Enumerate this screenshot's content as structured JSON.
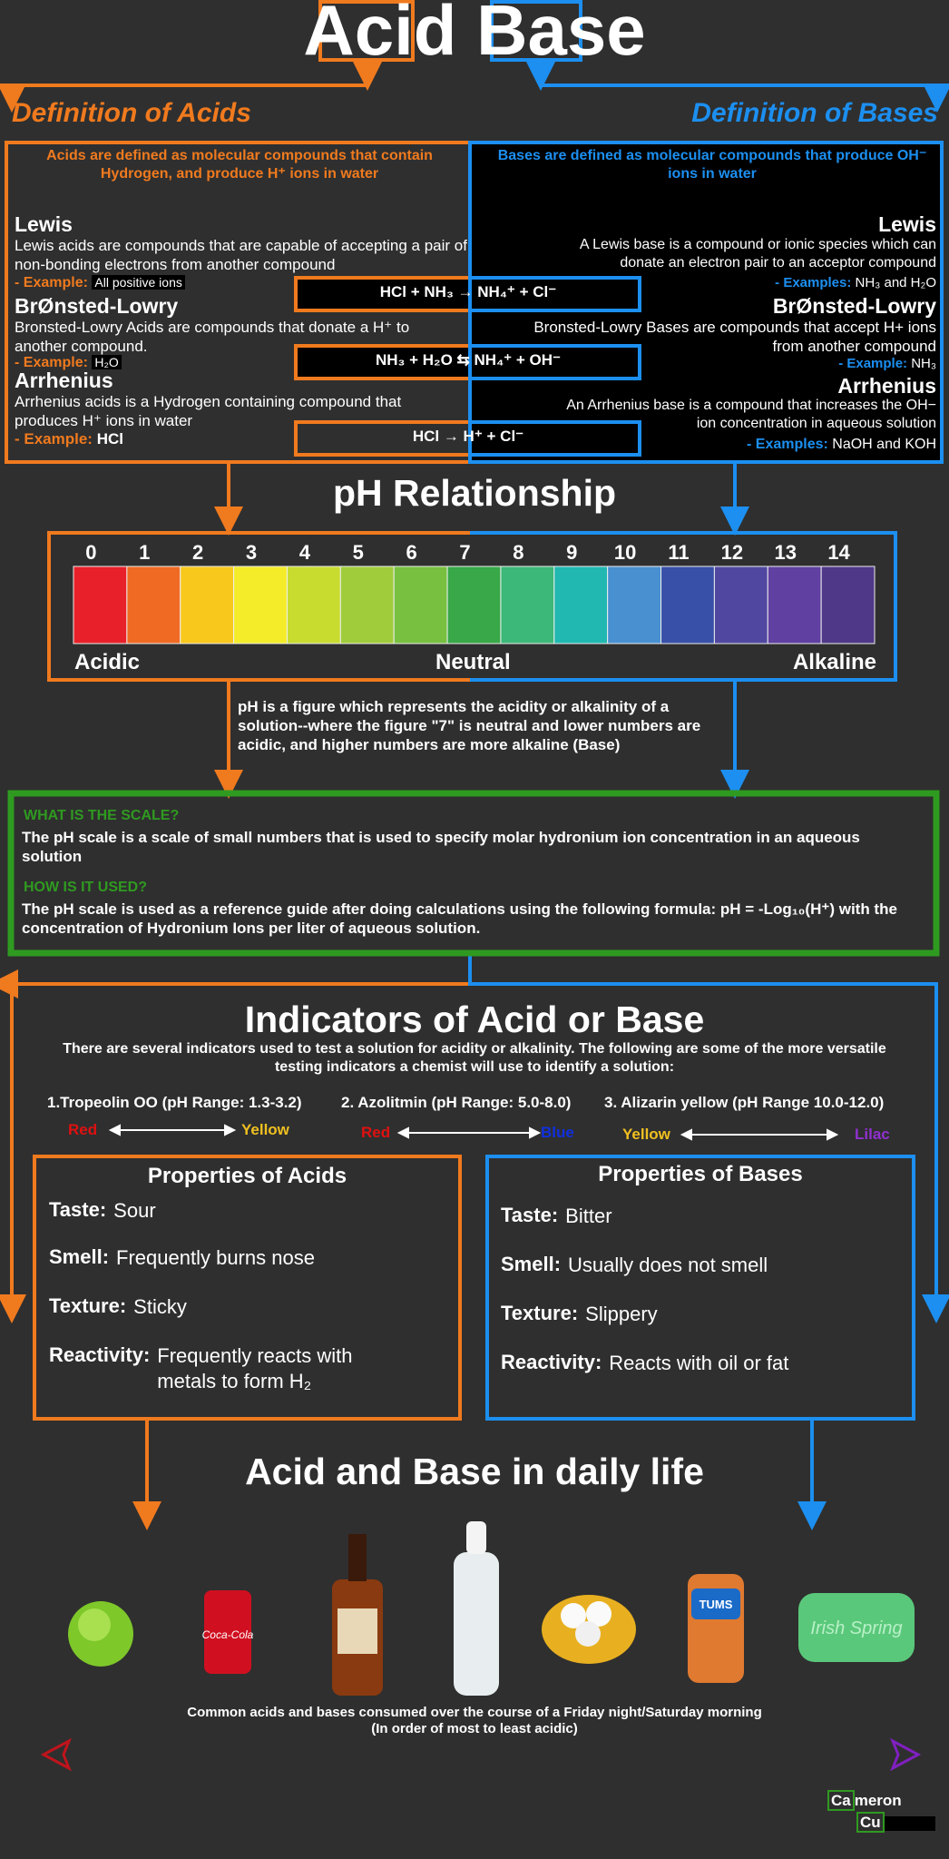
{
  "header": {
    "title_acid": "Acid",
    "title_base": "Base"
  },
  "acids": {
    "heading": "Definition of Acids",
    "intro": "Acids are defined as molecular compounds that contain Hydrogen, and produce H⁺ ions in water",
    "definitions": [
      {
        "name": "Lewis",
        "text": "Lewis acids are compounds that are capable of accepting a pair of non-bonding electrons from another compound",
        "example_label": "- Example:",
        "example": "All positive ions"
      },
      {
        "name": "BrØnsted-Lowry",
        "text": "Bronsted-Lowry Acids are compounds that donate a H⁺ to another compound.",
        "example_label": "- Example:",
        "example": "H₂O"
      },
      {
        "name": "Arrhenius",
        "text": "Arrhenius acids is a Hydrogen containing compound that produces H⁺ ions in water",
        "example_label": "- Example:",
        "example": "HCl"
      }
    ]
  },
  "bases": {
    "heading": "Definition of Bases",
    "intro": "Bases are defined as molecular compounds that produce OH⁻ ions in water",
    "definitions": [
      {
        "name": "Lewis",
        "text": "A Lewis base is a compound or ionic species which can donate an electron pair to an acceptor compound",
        "example_label": "- Examples:",
        "example": "NH₃ and H₂O"
      },
      {
        "name": "BrØnsted-Lowry",
        "text": "Bronsted-Lowry Bases are compounds that accept H+ ions from another compound",
        "example_label": "- Example:",
        "example": "NH₃"
      },
      {
        "name": "Arrhenius",
        "text": "An Arrhenius base is a compound that increases the OH− ion concentration in aqueous solution",
        "example_label": "- Examples:",
        "example": "NaOH and KOH"
      }
    ]
  },
  "equations": [
    "HCl + NH₃ → NH₄⁺ + Cl⁻",
    "NH₃ + H₂O ⇆ NH₄⁺ + OH⁻",
    "HCl → H⁺ + Cl⁻"
  ],
  "ph": {
    "title": "pH Relationship",
    "scale": [
      0,
      1,
      2,
      3,
      4,
      5,
      6,
      7,
      8,
      9,
      10,
      11,
      12,
      13,
      14
    ],
    "labels": [
      "Acidic",
      "Neutral",
      "Alkaline"
    ],
    "description": "pH is a figure which represents the acidity or alkalinity of a solution--where the figure \"7\" is neutral and lower numbers are acidic, and higher numbers are more alkaline (Base)"
  },
  "scale_info": {
    "q1": "WHAT IS THE SCALE?",
    "a1": "The pH scale is a scale of small numbers that is used to specify molar hydronium ion concentration in an aqueous solution",
    "q2": "HOW IS IT USED?",
    "a2": "The pH scale is used as a reference guide after doing calculations using the following formula: pH = -Log₁₀(H⁺) with the concentration of Hydronium Ions per liter of aqueous solution."
  },
  "indicators": {
    "title": "Indicators of Acid or Base",
    "description": "There are several indicators used to test a solution for acidity or alkalinity. The following are some of the more versatile testing indicators a chemist will use to identify a solution:",
    "items": [
      {
        "name": "1.Tropeolin OO (pH Range: 1.3-3.2)",
        "low": "Red",
        "high": "Yellow"
      },
      {
        "name": "2. Azolitmin (pH Range: 5.0-8.0)",
        "low": "Red",
        "high": "Blue"
      },
      {
        "name": "3. Alizarin yellow (pH Range 10.0-12.0)",
        "low": "Yellow",
        "high": "Lilac"
      }
    ]
  },
  "properties": {
    "acids": {
      "title": "Properties of Acids",
      "rows": [
        [
          "Taste:",
          "Sour"
        ],
        [
          "Smell:",
          "Frequently burns nose"
        ],
        [
          "Texture:",
          "Sticky"
        ],
        [
          "Reactivity:",
          "Frequently reacts with metals to form H₂"
        ]
      ]
    },
    "bases": {
      "title": "Properties of Bases",
      "rows": [
        [
          "Taste:",
          "Bitter"
        ],
        [
          "Smell:",
          "Usually does not smell"
        ],
        [
          "Texture:",
          "Slippery"
        ],
        [
          "Reactivity:",
          "Reacts with oil or fat"
        ]
      ]
    }
  },
  "daily": {
    "title": "Acid and Base in daily life",
    "caption": [
      "Common acids and bases consumed over the course of a Friday night/Saturday morning",
      "(In order of most to least acidic)"
    ]
  },
  "credit": {
    "first_box": "Ca",
    "first_rest": "meron",
    "second_box": "Cu"
  }
}
